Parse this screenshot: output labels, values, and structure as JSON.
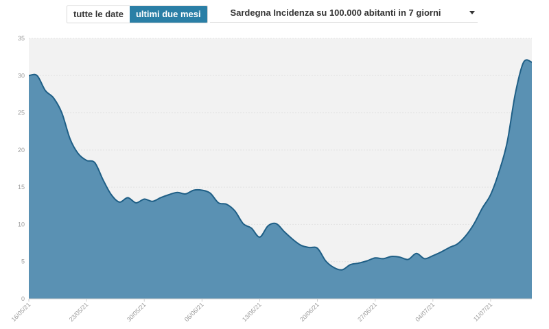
{
  "controls": {
    "range_buttons": [
      {
        "label": "tutte le date",
        "active": false
      },
      {
        "label": "ultimi due mesi",
        "active": true
      }
    ],
    "metric_select": {
      "value": "Sardegna Incidenza su 100.000 abitanti in 7 giorni",
      "icon": "caret-down-icon"
    }
  },
  "colors": {
    "plot_background": "#f2f2f2",
    "area_fill": "#5a91b3",
    "line": "#1f5f86",
    "active_button": "#2a7fa6"
  },
  "chart_data": {
    "type": "area",
    "title": "Sardegna Incidenza su 100.000 abitanti in 7 giorni",
    "xlabel": "",
    "ylabel": "",
    "ylim": [
      0,
      35
    ],
    "yticks": [
      0,
      5,
      10,
      15,
      20,
      25,
      30,
      35
    ],
    "grid": true,
    "xticks": [
      "16/05/21",
      "23/05/21",
      "30/05/21",
      "06/06/21",
      "13/06/21",
      "20/06/21",
      "27/06/21",
      "04/07/21",
      "11/07/21"
    ],
    "x": [
      "16/05/21",
      "17/05/21",
      "18/05/21",
      "19/05/21",
      "20/05/21",
      "21/05/21",
      "22/05/21",
      "23/05/21",
      "24/05/21",
      "25/05/21",
      "26/05/21",
      "27/05/21",
      "28/05/21",
      "29/05/21",
      "30/05/21",
      "31/05/21",
      "01/06/21",
      "02/06/21",
      "03/06/21",
      "04/06/21",
      "05/06/21",
      "06/06/21",
      "07/06/21",
      "08/06/21",
      "09/06/21",
      "10/06/21",
      "11/06/21",
      "12/06/21",
      "13/06/21",
      "14/06/21",
      "15/06/21",
      "16/06/21",
      "17/06/21",
      "18/06/21",
      "19/06/21",
      "20/06/21",
      "21/06/21",
      "22/06/21",
      "23/06/21",
      "24/06/21",
      "25/06/21",
      "26/06/21",
      "27/06/21",
      "28/06/21",
      "29/06/21",
      "30/06/21",
      "01/07/21",
      "02/07/21",
      "03/07/21",
      "04/07/21",
      "05/07/21",
      "06/07/21",
      "07/07/21",
      "08/07/21",
      "09/07/21",
      "10/07/21",
      "11/07/21",
      "12/07/21",
      "13/07/21",
      "14/07/21",
      "15/07/21",
      "16/07/21"
    ],
    "values": [
      30.0,
      30.0,
      28.0,
      27.0,
      25.0,
      21.5,
      19.5,
      18.6,
      18.3,
      16.0,
      14.0,
      13.0,
      13.6,
      12.9,
      13.4,
      13.1,
      13.6,
      14.0,
      14.3,
      14.1,
      14.6,
      14.6,
      14.2,
      12.9,
      12.7,
      11.8,
      10.1,
      9.5,
      8.3,
      9.8,
      10.1,
      9.0,
      8.0,
      7.2,
      6.9,
      6.8,
      5.1,
      4.2,
      3.9,
      4.6,
      4.8,
      5.1,
      5.5,
      5.4,
      5.7,
      5.6,
      5.3,
      6.1,
      5.4,
      5.8,
      6.3,
      6.9,
      7.4,
      8.5,
      10.1,
      12.2,
      14.0,
      17.0,
      21.0,
      27.6,
      31.8,
      31.8
    ]
  }
}
